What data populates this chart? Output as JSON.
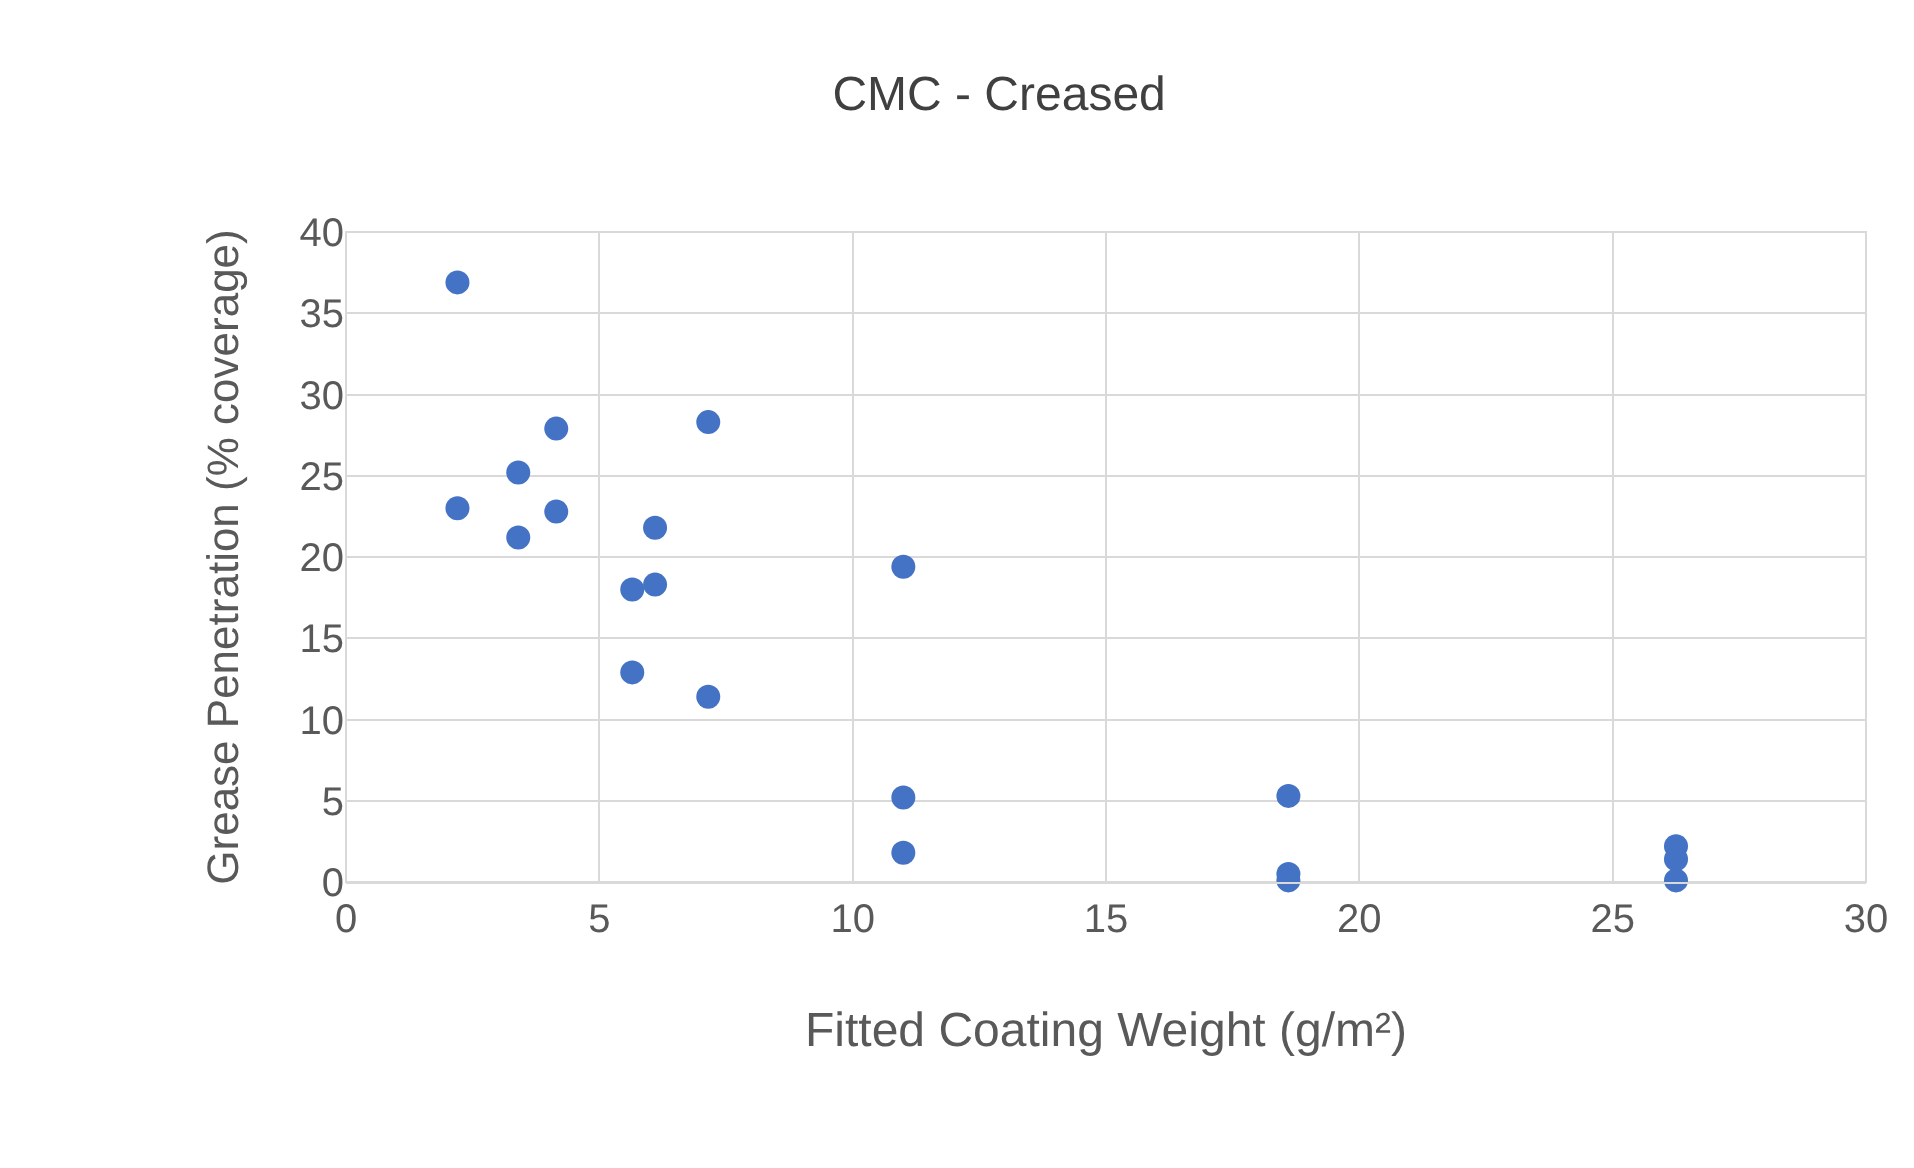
{
  "chart_data": {
    "type": "scatter",
    "title": "CMC - Creased",
    "xlabel": "Fitted Coating Weight (g/m²)",
    "ylabel": "Grease Penetration (% coverage)",
    "x": [
      2.2,
      2.2,
      3.4,
      3.4,
      4.15,
      4.15,
      5.65,
      5.65,
      6.1,
      6.1,
      7.15,
      7.15,
      11.0,
      11.0,
      11.0,
      18.6,
      18.6,
      18.6,
      26.25,
      26.25,
      26.25
    ],
    "series": [
      {
        "color": "#4472c4",
        "values": [
          36.9,
          23.0,
          25.2,
          21.2,
          27.9,
          22.8,
          18.0,
          12.9,
          18.3,
          21.8,
          28.3,
          11.4,
          19.4,
          5.2,
          1.8,
          5.3,
          0.5,
          0.1,
          2.2,
          1.4,
          0.1
        ]
      }
    ],
    "xlim": [
      0,
      30
    ],
    "xticks": [
      0,
      5,
      10,
      15,
      20,
      25,
      30
    ],
    "ylim": [
      0,
      40
    ],
    "yticks": [
      0,
      5,
      10,
      15,
      20,
      25,
      30,
      35,
      40
    ],
    "grid": true,
    "marker": "circle"
  }
}
